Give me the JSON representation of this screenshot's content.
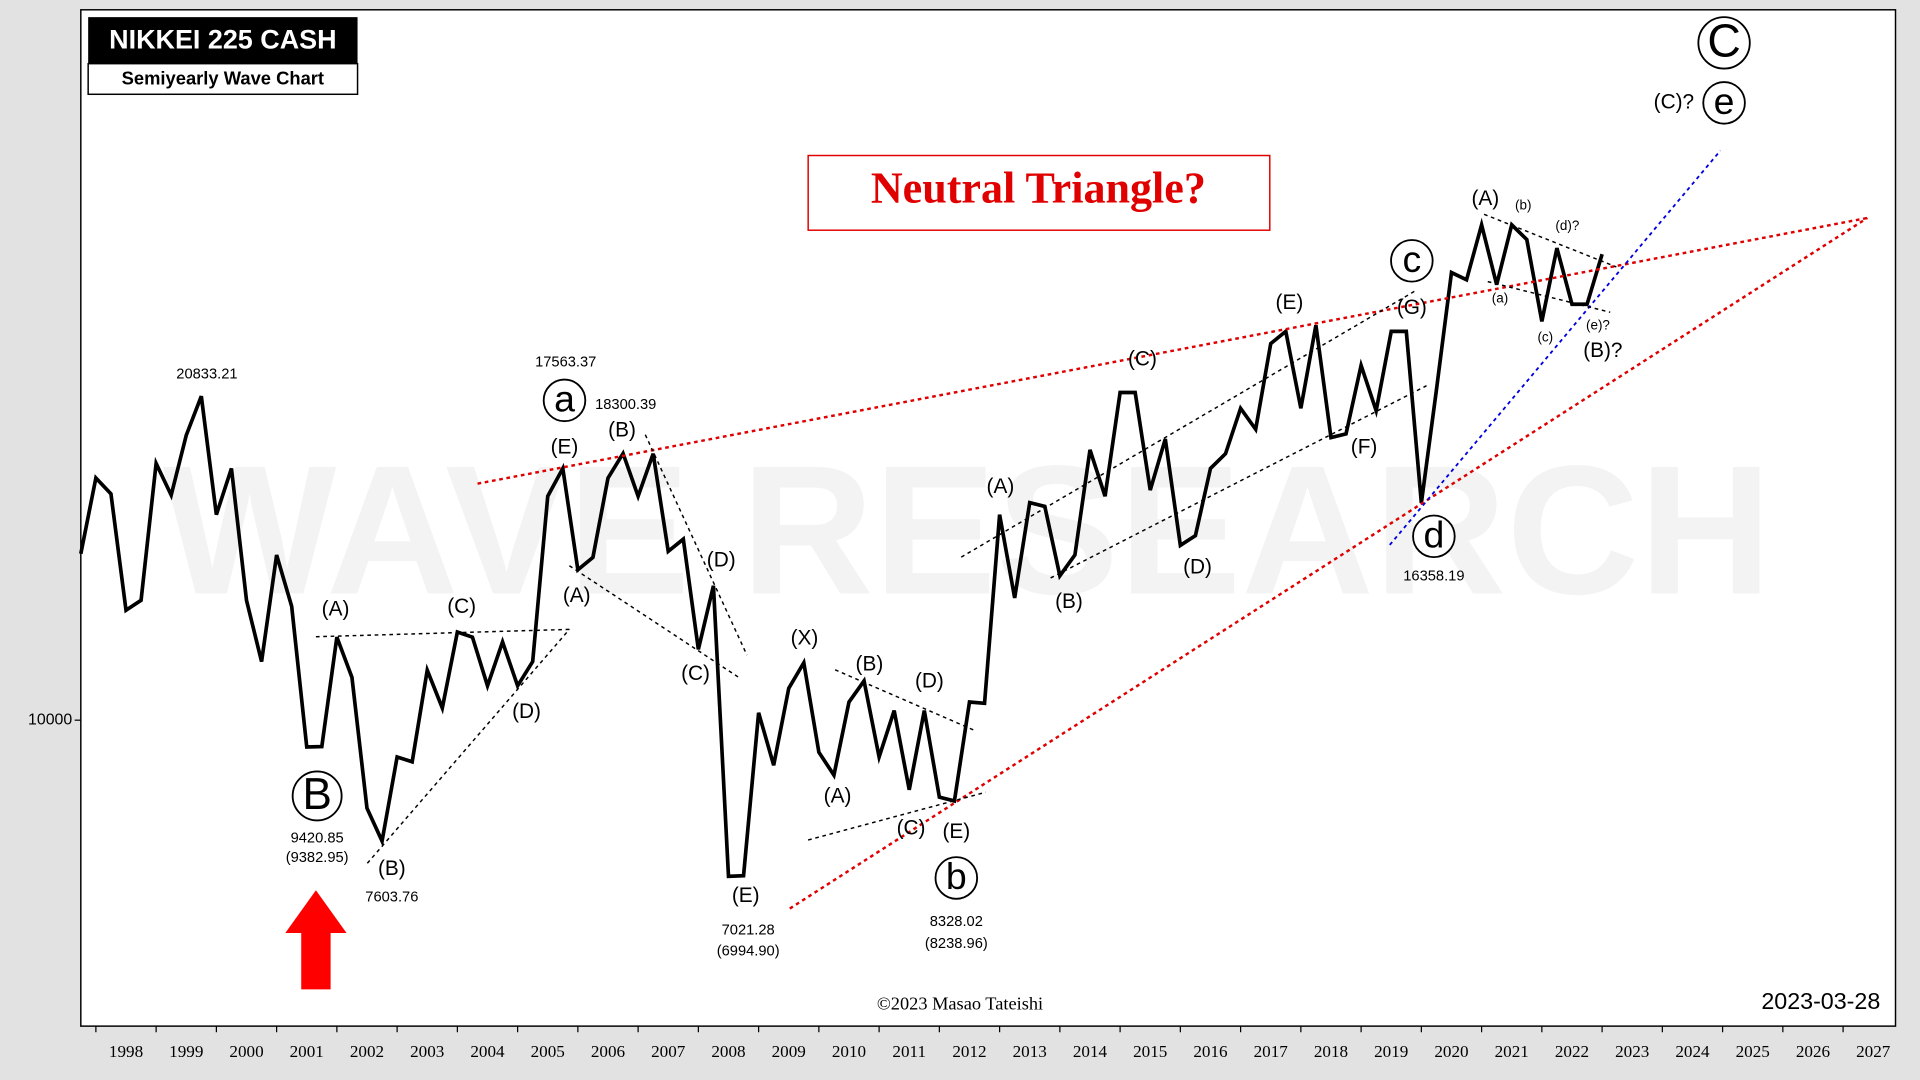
{
  "chart_data": {
    "type": "line",
    "title": "NIKKEI 225 CASH",
    "subtitle": "Semiyearly Wave Chart",
    "headline": "Neutral Triangle?",
    "copyright": "©2023 Masao Tateishi",
    "date": "2023-03-28",
    "watermark": "WAVE RESEARCH",
    "color": "#000000",
    "log_y": true,
    "xlim": [
      1997.75,
      2027.87
    ],
    "ylim": [
      5000,
      50000
    ],
    "xticks": [
      1998,
      1999,
      2000,
      2001,
      2002,
      2003,
      2004,
      2005,
      2006,
      2007,
      2008,
      2009,
      2010,
      2011,
      2012,
      2013,
      2014,
      2015,
      2016,
      2017,
      2018,
      2019,
      2020,
      2021,
      2022,
      2023,
      2024,
      2025,
      2026,
      2027
    ],
    "yticks": [
      10000
    ],
    "x": [
      1997.75,
      1998,
      1998.25,
      1998.5,
      1998.75,
      1999,
      1999.25,
      1999.5,
      1999.75,
      2000,
      2000.25,
      2000.5,
      2000.75,
      2001,
      2001.25,
      2001.5,
      2001.75,
      2002,
      2002.25,
      2002.5,
      2002.75,
      2003,
      2003.25,
      2003.5,
      2003.75,
      2004,
      2004.25,
      2004.5,
      2004.75,
      2005,
      2005.25,
      2005.5,
      2005.75,
      2006,
      2006.25,
      2006.5,
      2006.75,
      2007,
      2007.25,
      2007.5,
      2007.75,
      2008,
      2008.25,
      2008.5,
      2008.75,
      2009,
      2009.25,
      2009.5,
      2009.75,
      2010,
      2010.25,
      2010.5,
      2010.75,
      2011,
      2011.25,
      2011.5,
      2011.75,
      2012,
      2012.25,
      2012.5,
      2012.75,
      2013,
      2013.25,
      2013.5,
      2013.75,
      2014,
      2014.25,
      2014.5,
      2014.75,
      2015,
      2015.25,
      2015.5,
      2015.75,
      2016,
      2016.25,
      2016.5,
      2016.75,
      2017,
      2017.25,
      2017.5,
      2017.75,
      2018,
      2018.25,
      2018.5,
      2018.75,
      2019,
      2019.25,
      2019.5,
      2019.75,
      2020,
      2020.25,
      2020.5,
      2020.75,
      2021,
      2021.25,
      2021.5,
      2021.75,
      2022,
      2022.25,
      2022.5,
      2022.75,
      2023
    ],
    "values": [
      14580,
      17310,
      16700,
      12830,
      13120,
      17890,
      16650,
      19070,
      20833,
      15930,
      17690,
      13120,
      11420,
      14540,
      12940,
      9410,
      9420,
      12070,
      11020,
      8190,
      7604,
      9200,
      9100,
      11200,
      10280,
      12210,
      12070,
      10810,
      11940,
      10810,
      11420,
      16610,
      17690,
      14060,
      14460,
      17310,
      18300,
      16610,
      18290,
      14660,
      15070,
      11740,
      13560,
      7021,
      7030,
      10170,
      9030,
      10750,
      11390,
      9300,
      8830,
      10420,
      10930,
      9200,
      10220,
      8540,
      10220,
      8400,
      8328,
      10420,
      10390,
      15930,
      13190,
      16370,
      16230,
      13870,
      14540,
      18450,
      16610,
      21010,
      21010,
      16840,
      18910,
      14860,
      15190,
      17690,
      18290,
      20270,
      19330,
      23470,
      24130,
      20270,
      24470,
      18970,
      19130,
      22340,
      20160,
      24130,
      24130,
      16358,
      21130,
      27570,
      27120,
      30720,
      26820,
      30720,
      29710,
      24680,
      29140,
      25660,
      25660,
      28740
    ],
    "annotations": [
      "(A)",
      "(B)",
      "(C)",
      "(D)",
      "(E)",
      "(A)",
      "(B)",
      "(C)",
      "(D)",
      "(E)",
      "(X)",
      "(A)",
      "(B)",
      "(C)",
      "(D)",
      "(E)",
      "(A)",
      "(B)",
      "(C)",
      "(D)",
      "(E)",
      "(F)",
      "(G)",
      "(A)",
      "(B)?",
      "(C)?",
      "(b)",
      "(d)?",
      "(a)",
      "(c)",
      "(e)?",
      "20833.21",
      "17563.37",
      "18300.39",
      "9420.85",
      "(9382.95)",
      "7603.76",
      "7021.28",
      "(6994.90)",
      "8328.02",
      "(8238.96)",
      "16358.19",
      "B",
      "a",
      "b",
      "c",
      "d",
      "C",
      "e"
    ]
  }
}
